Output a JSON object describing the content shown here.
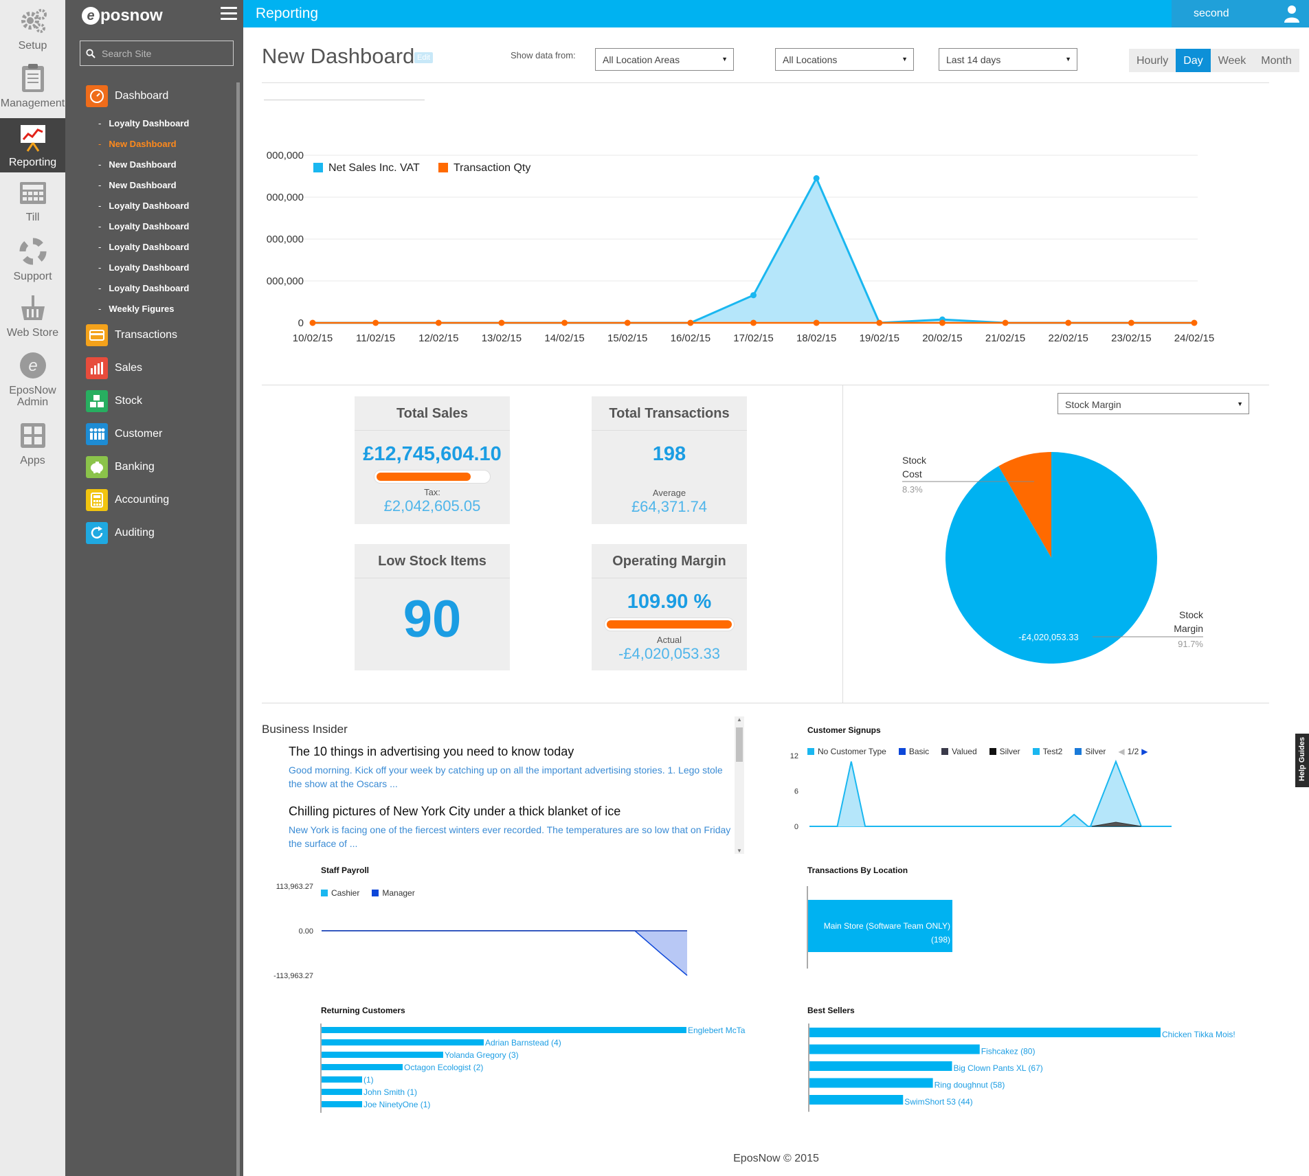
{
  "rail": {
    "items": [
      {
        "label": "Setup",
        "icon": "gear-icon"
      },
      {
        "label": "Management",
        "icon": "clipboard-icon"
      },
      {
        "label": "Reporting",
        "icon": "chart-easel-icon"
      },
      {
        "label": "Till",
        "icon": "till-icon"
      },
      {
        "label": "Support",
        "icon": "lifebuoy-icon"
      },
      {
        "label": "Web Store",
        "icon": "basket-icon"
      },
      {
        "label": "EposNow Admin",
        "icon": "eposnow-admin-icon"
      },
      {
        "label": "Apps",
        "icon": "apps-icon"
      }
    ]
  },
  "nav": {
    "logo": "posnow",
    "logo_mark": "e",
    "search_placeholder": "Search Site",
    "main": [
      {
        "label": "Dashboard",
        "color": "#ef6c1a"
      },
      {
        "label": "Transactions",
        "color": "#f4a21b"
      },
      {
        "label": "Sales",
        "color": "#e74c3c"
      },
      {
        "label": "Stock",
        "color": "#27ae60"
      },
      {
        "label": "Customer",
        "color": "#1d8cd4"
      },
      {
        "label": "Banking",
        "color": "#8bc34a"
      },
      {
        "label": "Accounting",
        "color": "#f1c40f"
      },
      {
        "label": "Auditing",
        "color": "#1fa9e1"
      }
    ],
    "dashboard_sub": [
      "Loyalty Dashboard",
      "New Dashboard",
      "New Dashboard",
      "New Dashboard",
      "Loyalty Dashboard",
      "Loyalty Dashboard",
      "Loyalty Dashboard",
      "Loyalty Dashboard",
      "Loyalty Dashboard",
      "Weekly Figures"
    ],
    "sub_bullet": "-"
  },
  "header": {
    "title": "Reporting",
    "user": "second"
  },
  "page": {
    "title": "New Dashboard",
    "edit": "Edit",
    "show_from": "Show data from:",
    "filters": [
      "All Location Areas",
      "All Locations",
      "Last 14 days"
    ],
    "arrow": "▼",
    "tabs": [
      "Hourly",
      "Day",
      "Week",
      "Month"
    ],
    "active_tab": "Day"
  },
  "chart_data": [
    {
      "type": "area",
      "series": [
        {
          "name": "Net Sales Inc. VAT",
          "color": "#1ab7f0",
          "values": [
            0,
            0,
            0,
            0,
            0,
            0,
            0,
            660000,
            3450000,
            0,
            80000,
            0,
            0,
            0,
            0
          ]
        },
        {
          "name": "Transaction Qty",
          "color": "#ff6a00",
          "values": [
            0,
            0,
            0,
            0,
            0,
            0,
            0,
            0,
            0,
            0,
            0,
            0,
            0,
            0,
            0
          ]
        }
      ],
      "x": [
        "10/02/15",
        "11/02/15",
        "12/02/15",
        "13/02/15",
        "14/02/15",
        "15/02/15",
        "16/02/15",
        "17/02/15",
        "18/02/15",
        "19/02/15",
        "20/02/15",
        "21/02/15",
        "22/02/15",
        "23/02/15",
        "24/02/15"
      ],
      "y_ticks": [
        "0",
        "000,000",
        "000,000",
        "000,000",
        "000,000"
      ],
      "ylim": [
        0,
        4000000
      ],
      "legend": "top-left"
    },
    {
      "type": "pie",
      "selector": "Stock Margin",
      "slices": [
        {
          "label": "Stock Margin",
          "value": 91.7,
          "pct": "91.7%",
          "color": "#00b2f1",
          "inner_label": "-£4,020,053.33"
        },
        {
          "label": "Stock Cost",
          "value": 8.3,
          "pct": "8.3%",
          "color": "#ff6a00"
        }
      ]
    },
    {
      "type": "area",
      "title": "Customer Signups",
      "legend": [
        "No Customer Type",
        "Basic",
        "Valued",
        "Silver",
        "Test2",
        "Silver"
      ],
      "legend_colors": [
        "#1ab7f0",
        "#0d47d9",
        "#3a3a4a",
        "#111111",
        "#1ab7f0",
        "#1a7ad9"
      ],
      "pager": "1/2",
      "y_ticks": [
        "0",
        "6",
        "12"
      ],
      "ylim": [
        0,
        12
      ],
      "series": [
        {
          "name": "No Customer Type",
          "values": [
            0,
            0,
            0,
            11,
            0,
            0,
            0,
            0,
            0,
            0,
            0,
            0,
            0,
            0,
            0,
            0,
            0,
            0,
            0,
            2,
            0,
            0,
            0,
            0,
            0,
            0,
            0
          ]
        },
        {
          "name": "Test2",
          "values": [
            0,
            0,
            0,
            0,
            0,
            0,
            0,
            0,
            0,
            0,
            0,
            0,
            0,
            0,
            0,
            0,
            0,
            0,
            0,
            0,
            0,
            0,
            0,
            0,
            0,
            0,
            0
          ]
        }
      ]
    },
    {
      "type": "area",
      "title": "Staff Payroll",
      "legend": [
        "Cashier",
        "Manager"
      ],
      "legend_colors": [
        "#1ab7f0",
        "#0d47d9"
      ],
      "y_ticks": [
        "113,963.27",
        "0.00",
        "-113,963.27"
      ],
      "ylim": [
        -113963.27,
        113963.27
      ],
      "series": [
        {
          "name": "Manager",
          "values": [
            0,
            0,
            0,
            0,
            0,
            0,
            0,
            0,
            0,
            0,
            0,
            0,
            0,
            -58000,
            -113963.27
          ]
        }
      ]
    },
    {
      "type": "bar",
      "title": "Transactions By Location",
      "categories": [
        "Main Store (Software Team ONLY)"
      ],
      "values": [
        198
      ],
      "labels": [
        "Main Store (Software Team ONLY)",
        "(198)"
      ]
    },
    {
      "type": "bar",
      "title": "Returning Customers",
      "categories": [
        "Englebert McTa",
        "Adrian Barnstead (4)",
        "Yolanda Gregory (3)",
        "Octagon Ecologist (2)",
        "(1)",
        "John Smith (1)",
        "Joe NinetyOne (1)"
      ],
      "values": [
        9,
        4,
        3,
        2,
        1,
        1,
        1
      ]
    },
    {
      "type": "bar",
      "title": "Best Sellers",
      "categories": [
        "Chicken Tikka Mois!",
        "Fishcakez (80)",
        "Big Clown Pants XL (67)",
        "Ring doughnut (58)",
        "SwimShort 53 (44)"
      ],
      "values": [
        165,
        80,
        67,
        58,
        44
      ]
    }
  ],
  "stats": {
    "total_sales": {
      "title": "Total Sales",
      "value": "£12,745,604.10",
      "bar": 0.85,
      "sub_label": "Tax:",
      "sub_value": "£2,042,605.05"
    },
    "total_transactions": {
      "title": "Total Transactions",
      "value": "198",
      "sub_label": "Average",
      "sub_value": "£64,371.74"
    },
    "low_stock": {
      "title": "Low Stock Items",
      "value": "90"
    },
    "operating_margin": {
      "title": "Operating Margin",
      "value": "109.90 %",
      "bar": 1.0,
      "sub_label": "Actual",
      "sub_value": "-£4,020,053.33"
    }
  },
  "news": {
    "title": "Business Insider",
    "items": [
      {
        "headline": "The 10 things in advertising you need to know today",
        "summary": "Good morning. Kick off your week by catching up on all the important advertising stories. 1. Lego stole the show at the Oscars ..."
      },
      {
        "headline": "Chilling pictures of New York City under a thick blanket of ice",
        "summary": "New York is facing one of the fiercest winters ever recorded.  The temperatures are so low that on Friday the surface of ..."
      }
    ]
  },
  "help_tab": "Help Guides",
  "footer": "EposNow © 2015"
}
